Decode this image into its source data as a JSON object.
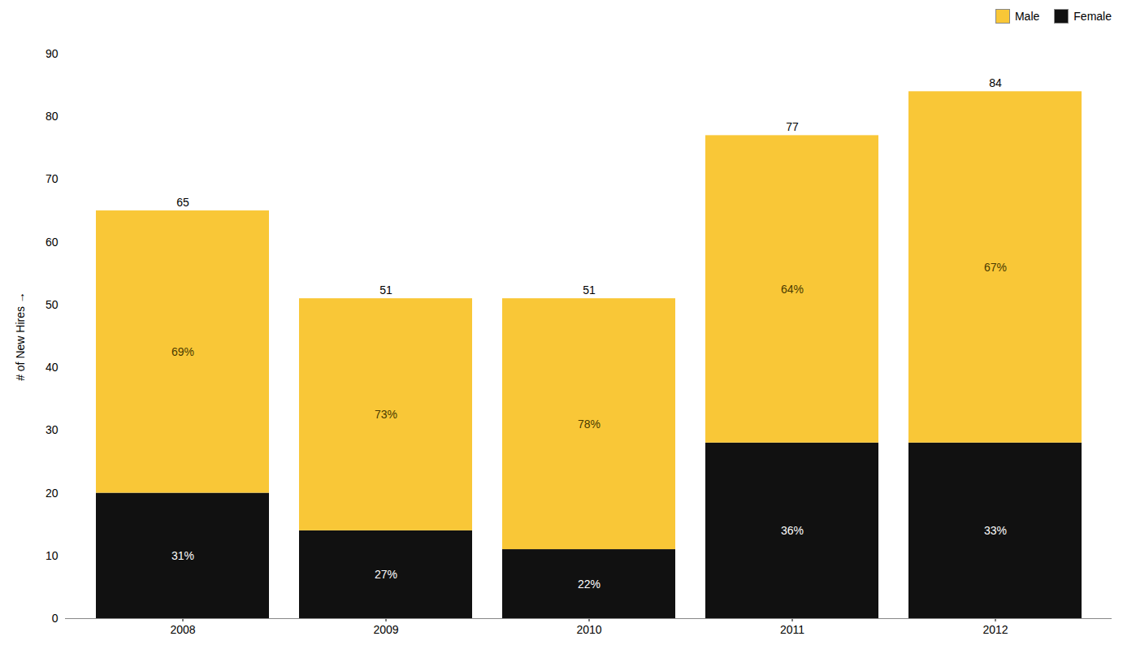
{
  "chart_data": {
    "type": "bar",
    "stacked": true,
    "categories": [
      "2008",
      "2009",
      "2010",
      "2011",
      "2012"
    ],
    "series": [
      {
        "name": "Female",
        "color": "#111111",
        "values": [
          20,
          14,
          11,
          28,
          28
        ],
        "shares": [
          31,
          27,
          22,
          36,
          33
        ],
        "share_labels": [
          "31%",
          "27%",
          "22%",
          "36%",
          "33%"
        ]
      },
      {
        "name": "Male",
        "color": "#F9C737",
        "values": [
          45,
          37,
          40,
          49,
          56
        ],
        "shares": [
          69,
          73,
          78,
          64,
          67
        ],
        "share_labels": [
          "69%",
          "73%",
          "78%",
          "64%",
          "67%"
        ]
      }
    ],
    "totals": [
      65,
      51,
      51,
      77,
      84
    ],
    "ylabel": "# of New Hires",
    "ylim": [
      0,
      90
    ],
    "yticks": [
      0,
      10,
      20,
      30,
      40,
      50,
      60,
      70,
      80,
      90
    ],
    "grid": false,
    "legend": "upper right"
  }
}
